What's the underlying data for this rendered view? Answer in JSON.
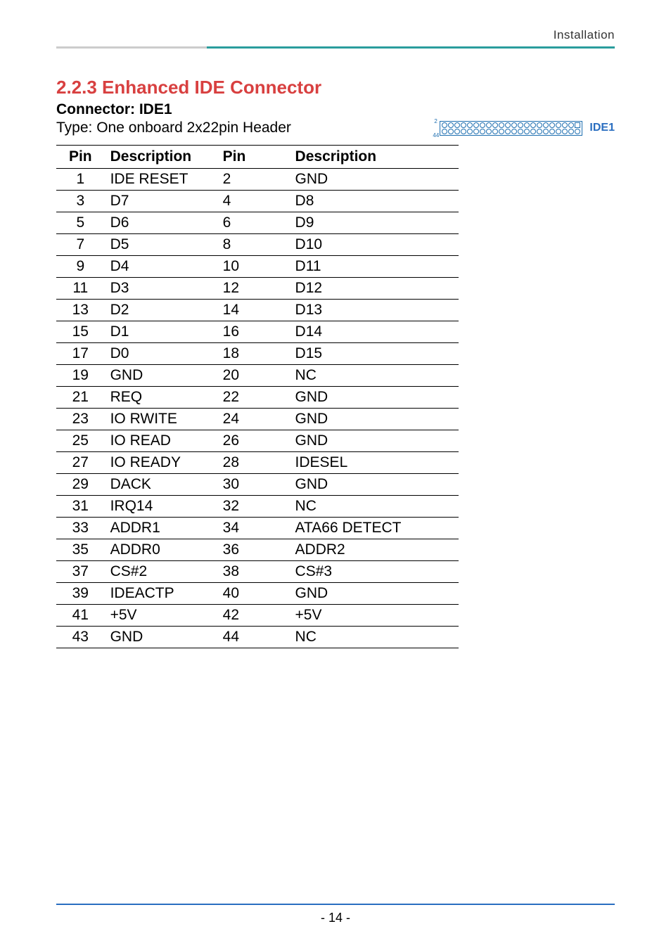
{
  "header": {
    "label": "Installation"
  },
  "section": {
    "title": "2.2.3 Enhanced IDE Connector",
    "connector_name": "Connector: IDE1",
    "type_text": "Type: One onboard 2x22pin Header",
    "connector_label": "IDE1",
    "pin_top_num": "2",
    "pin_bottom_num": "44"
  },
  "table": {
    "headers": [
      "Pin",
      "Description",
      "Pin",
      "Description"
    ],
    "rows": [
      [
        "1",
        "IDE RESET",
        "2",
        "GND"
      ],
      [
        "3",
        "D7",
        "4",
        "D8"
      ],
      [
        "5",
        "D6",
        "6",
        "D9"
      ],
      [
        "7",
        "D5",
        "8",
        "D10"
      ],
      [
        "9",
        "D4",
        "10",
        "D11"
      ],
      [
        "11",
        "D3",
        "12",
        "D12"
      ],
      [
        "13",
        "D2",
        "14",
        "D13"
      ],
      [
        "15",
        "D1",
        "16",
        "D14"
      ],
      [
        "17",
        "D0",
        "18",
        "D15"
      ],
      [
        "19",
        "GND",
        "20",
        "NC"
      ],
      [
        "21",
        "REQ",
        "22",
        "GND"
      ],
      [
        "23",
        "IO RWITE",
        "24",
        "GND"
      ],
      [
        "25",
        "IO READ",
        "26",
        "GND"
      ],
      [
        "27",
        "IO READY",
        "28",
        "IDESEL"
      ],
      [
        "29",
        "DACK",
        "30",
        "GND"
      ],
      [
        "31",
        "IRQ14",
        "32",
        "NC"
      ],
      [
        "33",
        "ADDR1",
        "34",
        "ATA66 DETECT"
      ],
      [
        "35",
        "ADDR0",
        "36",
        "ADDR2"
      ],
      [
        "37",
        "CS#2",
        "38",
        "CS#3"
      ],
      [
        "39",
        "IDEACTP",
        "40",
        "GND"
      ],
      [
        "41",
        "+5V",
        "42",
        "+5V"
      ],
      [
        "43",
        "GND",
        "44",
        "NC"
      ]
    ]
  },
  "footer": {
    "page_number": "- 14 -"
  },
  "styles": {
    "accent_red": "#d84040",
    "accent_teal": "#2a9d9d",
    "accent_blue": "#2a6ec0",
    "text_color": "#000000",
    "header_grey": "#cccccc"
  }
}
